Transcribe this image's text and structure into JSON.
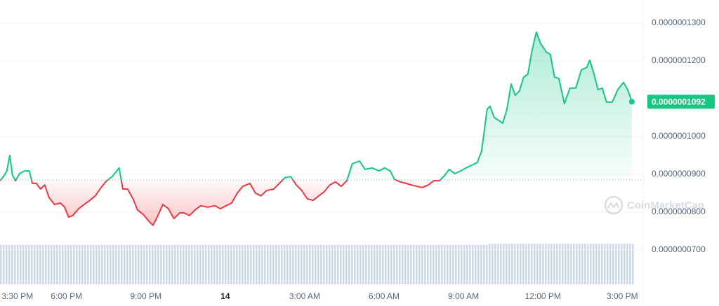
{
  "chart_data": {
    "type": "line",
    "x": [
      -8.51,
      -8.38,
      -8.25,
      -8.14,
      -8.04,
      -7.93,
      -7.77,
      -7.59,
      -7.4,
      -7.29,
      -7.14,
      -6.98,
      -6.82,
      -6.66,
      -6.45,
      -6.23,
      -6.07,
      -5.92,
      -5.76,
      -5.54,
      -5.33,
      -5.12,
      -4.91,
      -4.69,
      -4.48,
      -4.27,
      -4.01,
      -3.87,
      -3.69,
      -3.47,
      -3.32,
      -3.1,
      -2.89,
      -2.73,
      -2.57,
      -2.36,
      -2.15,
      -1.94,
      -1.72,
      -1.56,
      -1.35,
      -1.14,
      -0.93,
      -0.66,
      -0.4,
      -0.19,
      0.03,
      0.24,
      0.45,
      0.66,
      0.93,
      1.14,
      1.35,
      1.56,
      1.83,
      2.04,
      2.25,
      2.47,
      2.68,
      2.89,
      3.1,
      3.32,
      3.53,
      3.74,
      3.95,
      4.16,
      4.38,
      4.59,
      4.8,
      5.07,
      5.28,
      5.54,
      5.81,
      6.02,
      6.23,
      6.39,
      6.6,
      6.82,
      7.03,
      7.24,
      7.45,
      7.67,
      7.88,
      8.09,
      8.3,
      8.46,
      8.67,
      8.89,
      9.1,
      9.31,
      9.52,
      9.68,
      9.79,
      9.89,
      10.0,
      10.16,
      10.32,
      10.48,
      10.64,
      10.8,
      10.95,
      11.11,
      11.27,
      11.43,
      11.59,
      11.75,
      11.91,
      12.12,
      12.28,
      12.44,
      12.6,
      12.81,
      13.02,
      13.24,
      13.45,
      13.66,
      13.77,
      13.93,
      14.08,
      14.24,
      14.4,
      14.62,
      14.83,
      15.04,
      15.2,
      15.36
    ],
    "values": [
      8.83e-08,
      8.94e-08,
      9.09e-08,
      9.5e-08,
      8.98e-08,
      8.83e-08,
      9.02e-08,
      9.09e-08,
      9.09e-08,
      8.76e-08,
      8.76e-08,
      8.61e-08,
      8.72e-08,
      8.39e-08,
      8.2e-08,
      8.24e-08,
      8.13e-08,
      7.87e-08,
      7.91e-08,
      8.09e-08,
      8.2e-08,
      8.31e-08,
      8.43e-08,
      8.65e-08,
      8.83e-08,
      8.94e-08,
      9.17e-08,
      8.61e-08,
      8.61e-08,
      8.33e-08,
      8.06e-08,
      7.94e-08,
      7.76e-08,
      7.65e-08,
      7.87e-08,
      8.2e-08,
      8.09e-08,
      7.83e-08,
      7.98e-08,
      7.98e-08,
      7.91e-08,
      8.06e-08,
      8.17e-08,
      8.13e-08,
      8.17e-08,
      8.09e-08,
      8.17e-08,
      8.24e-08,
      8.5e-08,
      8.68e-08,
      8.76e-08,
      8.5e-08,
      8.43e-08,
      8.57e-08,
      8.61e-08,
      8.76e-08,
      8.91e-08,
      8.94e-08,
      8.72e-08,
      8.57e-08,
      8.35e-08,
      8.31e-08,
      8.43e-08,
      8.54e-08,
      8.72e-08,
      8.8e-08,
      8.68e-08,
      8.83e-08,
      9.28e-08,
      9.35e-08,
      9.13e-08,
      9.17e-08,
      9.09e-08,
      9.17e-08,
      9.09e-08,
      8.87e-08,
      8.8e-08,
      8.76e-08,
      8.72e-08,
      8.68e-08,
      8.65e-08,
      8.72e-08,
      8.83e-08,
      8.83e-08,
      8.98e-08,
      9.13e-08,
      9.02e-08,
      9.09e-08,
      9.17e-08,
      9.24e-08,
      9.31e-08,
      9.61e-08,
      1.017e-07,
      1.072e-07,
      1.08e-07,
      1.05e-07,
      1.043e-07,
      1.035e-07,
      1.072e-07,
      1.139e-07,
      1.109e-07,
      1.12e-07,
      1.157e-07,
      1.165e-07,
      1.228e-07,
      1.276e-07,
      1.246e-07,
      1.224e-07,
      1.217e-07,
      1.157e-07,
      1.154e-07,
      1.087e-07,
      1.128e-07,
      1.128e-07,
      1.176e-07,
      1.183e-07,
      1.202e-07,
      1.165e-07,
      1.124e-07,
      1.128e-07,
      1.091e-07,
      1.091e-07,
      1.124e-07,
      1.143e-07,
      1.124e-07,
      1.092e-07
    ],
    "baseline": 8.85e-08,
    "color_up": "#16c784",
    "color_down": "#ea3943",
    "current_price": {
      "value": 1.092e-07,
      "label": "0.0000001092"
    },
    "xlim": [
      -8.51,
      15.76
    ],
    "xticks": [
      {
        "value": -8.5,
        "label": "3:30 PM"
      },
      {
        "value": -6,
        "label": "6:00 PM"
      },
      {
        "value": -3,
        "label": "9:00 PM"
      },
      {
        "value": 0,
        "label": "14"
      },
      {
        "value": 3,
        "label": "3:00 AM"
      },
      {
        "value": 6,
        "label": "6:00 AM"
      },
      {
        "value": 9,
        "label": "9:00 AM"
      },
      {
        "value": 12,
        "label": "12:00 PM"
      },
      {
        "value": 15,
        "label": "3:00 PM"
      }
    ],
    "ylim": [
      6.11e-08,
      1.361e-07
    ],
    "yticks": [
      {
        "value": 1.3e-07,
        "label": "0.0000001300"
      },
      {
        "value": 1.2e-07,
        "label": "0.0000001200"
      },
      {
        "value": 1e-07,
        "label": "0.0000001000"
      },
      {
        "value": 9e-08,
        "label": "0.0000000900"
      },
      {
        "value": 8e-08,
        "label": "0.0000000800"
      },
      {
        "value": 7e-08,
        "label": "0.0000000700"
      }
    ],
    "grid": true,
    "watermark": "CoinMarketCap"
  }
}
